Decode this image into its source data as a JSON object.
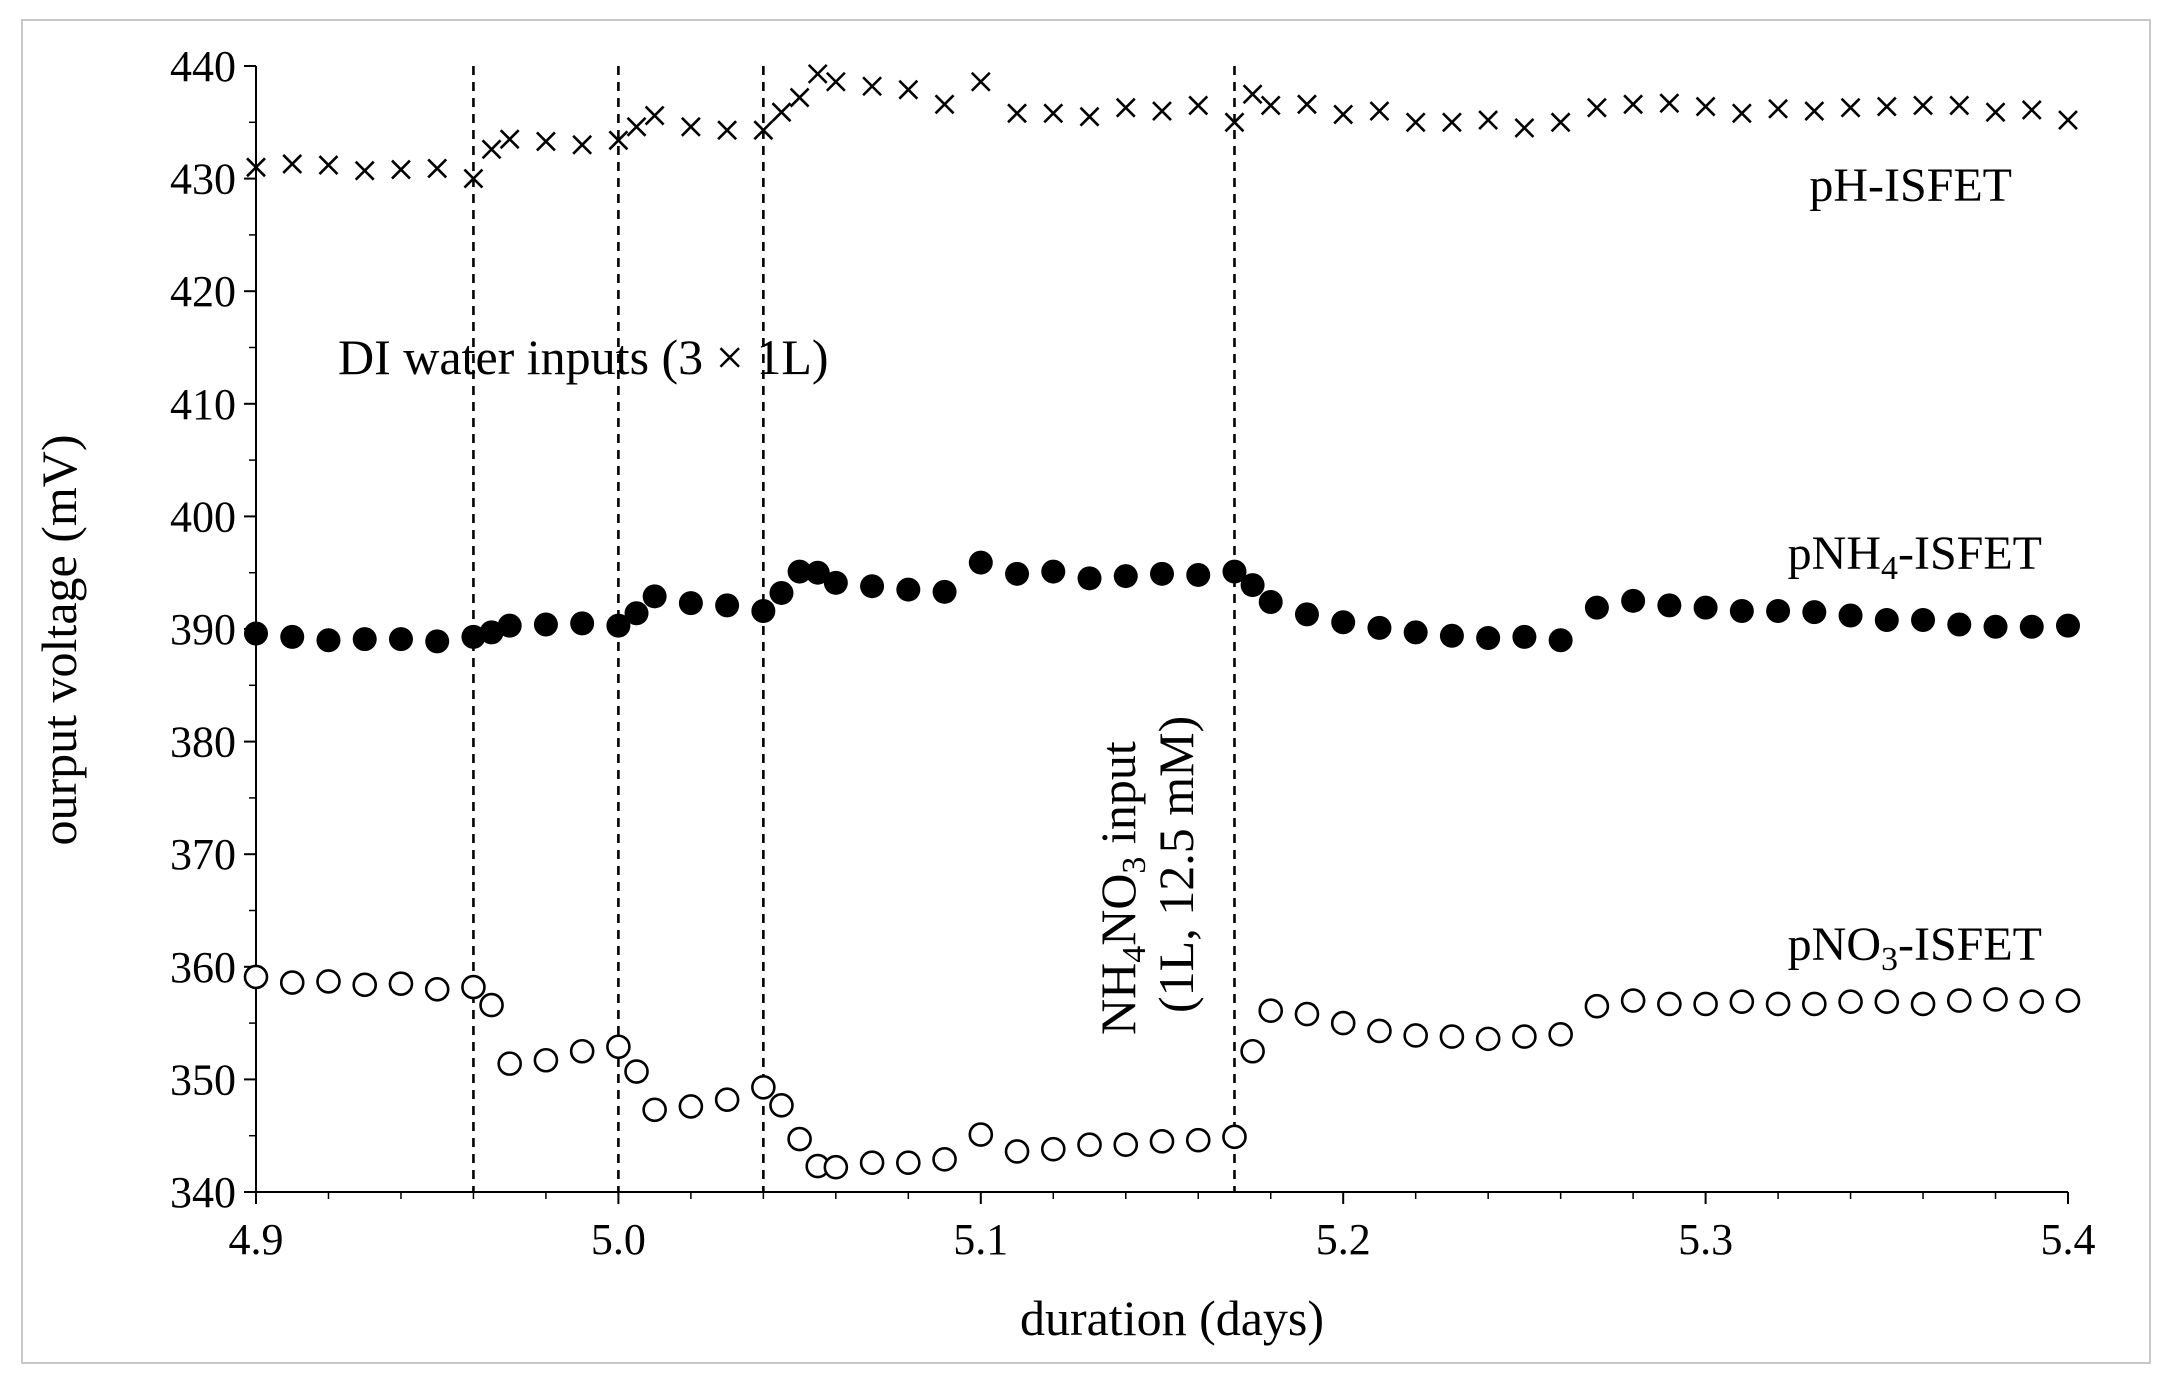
{
  "chart_data": {
    "type": "scatter",
    "title": "",
    "xlabel": "duration (days)",
    "ylabel": "ourput voltage (mV)",
    "xlim": [
      4.9,
      5.4
    ],
    "ylim": [
      340,
      440
    ],
    "x_ticks": [
      "4.9",
      "5.0",
      "5.1",
      "5.2",
      "5.3",
      "5.4"
    ],
    "y_ticks": [
      "340",
      "350",
      "360",
      "370",
      "380",
      "390",
      "400",
      "410",
      "420",
      "430",
      "440"
    ],
    "series": [
      {
        "name": "pH-ISFET",
        "label_base": "pH-ISFET",
        "label_sub": "",
        "label_tail": "",
        "marker": "x",
        "points": [
          [
            4.9,
            431.0
          ],
          [
            4.91,
            431.3
          ],
          [
            4.92,
            431.2
          ],
          [
            4.93,
            430.7
          ],
          [
            4.94,
            430.8
          ],
          [
            4.95,
            430.9
          ],
          [
            4.96,
            430.0
          ],
          [
            4.965,
            432.6
          ],
          [
            4.97,
            433.5
          ],
          [
            4.98,
            433.3
          ],
          [
            4.99,
            433.0
          ],
          [
            5.0,
            433.4
          ],
          [
            5.005,
            434.6
          ],
          [
            5.01,
            435.6
          ],
          [
            5.02,
            434.6
          ],
          [
            5.03,
            434.3
          ],
          [
            5.04,
            434.3
          ],
          [
            5.045,
            435.9
          ],
          [
            5.05,
            437.2
          ],
          [
            5.055,
            439.3
          ],
          [
            5.06,
            438.6
          ],
          [
            5.07,
            438.2
          ],
          [
            5.08,
            437.9
          ],
          [
            5.09,
            436.6
          ],
          [
            5.1,
            438.6
          ],
          [
            5.11,
            435.8
          ],
          [
            5.12,
            435.8
          ],
          [
            5.13,
            435.5
          ],
          [
            5.14,
            436.3
          ],
          [
            5.15,
            436.0
          ],
          [
            5.16,
            436.5
          ],
          [
            5.17,
            435.0
          ],
          [
            5.175,
            437.5
          ],
          [
            5.18,
            436.5
          ],
          [
            5.19,
            436.6
          ],
          [
            5.2,
            435.7
          ],
          [
            5.21,
            436.0
          ],
          [
            5.22,
            435.0
          ],
          [
            5.23,
            435.0
          ],
          [
            5.24,
            435.2
          ],
          [
            5.25,
            434.5
          ],
          [
            5.26,
            435.0
          ],
          [
            5.27,
            436.3
          ],
          [
            5.28,
            436.6
          ],
          [
            5.29,
            436.7
          ],
          [
            5.3,
            436.4
          ],
          [
            5.31,
            435.8
          ],
          [
            5.32,
            436.2
          ],
          [
            5.33,
            436.0
          ],
          [
            5.34,
            436.3
          ],
          [
            5.35,
            436.4
          ],
          [
            5.36,
            436.5
          ],
          [
            5.37,
            436.5
          ],
          [
            5.38,
            435.9
          ],
          [
            5.39,
            436.1
          ],
          [
            5.4,
            435.2
          ]
        ]
      },
      {
        "name": "pNH4-ISFET",
        "label_base": "pNH",
        "label_sub": "4",
        "label_tail": "-ISFET",
        "marker": "filled-circle",
        "points": [
          [
            4.9,
            389.6
          ],
          [
            4.91,
            389.3
          ],
          [
            4.92,
            389.0
          ],
          [
            4.93,
            389.1
          ],
          [
            4.94,
            389.1
          ],
          [
            4.95,
            388.9
          ],
          [
            4.96,
            389.3
          ],
          [
            4.965,
            389.7
          ],
          [
            4.97,
            390.3
          ],
          [
            4.98,
            390.4
          ],
          [
            4.99,
            390.5
          ],
          [
            5.0,
            390.3
          ],
          [
            5.005,
            391.4
          ],
          [
            5.01,
            392.9
          ],
          [
            5.02,
            392.3
          ],
          [
            5.03,
            392.1
          ],
          [
            5.04,
            391.6
          ],
          [
            5.045,
            393.2
          ],
          [
            5.05,
            395.1
          ],
          [
            5.055,
            395.0
          ],
          [
            5.06,
            394.1
          ],
          [
            5.07,
            393.8
          ],
          [
            5.08,
            393.5
          ],
          [
            5.09,
            393.3
          ],
          [
            5.1,
            395.9
          ],
          [
            5.11,
            394.9
          ],
          [
            5.12,
            395.1
          ],
          [
            5.13,
            394.5
          ],
          [
            5.14,
            394.7
          ],
          [
            5.15,
            394.9
          ],
          [
            5.16,
            394.8
          ],
          [
            5.17,
            395.1
          ],
          [
            5.175,
            393.9
          ],
          [
            5.18,
            392.4
          ],
          [
            5.19,
            391.3
          ],
          [
            5.2,
            390.6
          ],
          [
            5.21,
            390.1
          ],
          [
            5.22,
            389.7
          ],
          [
            5.23,
            389.4
          ],
          [
            5.24,
            389.2
          ],
          [
            5.25,
            389.3
          ],
          [
            5.26,
            389.0
          ],
          [
            5.27,
            391.9
          ],
          [
            5.28,
            392.5
          ],
          [
            5.29,
            392.1
          ],
          [
            5.3,
            391.9
          ],
          [
            5.31,
            391.6
          ],
          [
            5.32,
            391.6
          ],
          [
            5.33,
            391.5
          ],
          [
            5.34,
            391.2
          ],
          [
            5.35,
            390.8
          ],
          [
            5.36,
            390.8
          ],
          [
            5.37,
            390.4
          ],
          [
            5.38,
            390.2
          ],
          [
            5.39,
            390.2
          ],
          [
            5.4,
            390.3
          ]
        ]
      },
      {
        "name": "pNO3-ISFET",
        "label_base": "pNO",
        "label_sub": "3",
        "label_tail": "-ISFET",
        "marker": "open-circle",
        "points": [
          [
            4.9,
            359.1
          ],
          [
            4.91,
            358.6
          ],
          [
            4.92,
            358.7
          ],
          [
            4.93,
            358.4
          ],
          [
            4.94,
            358.5
          ],
          [
            4.95,
            358.0
          ],
          [
            4.96,
            358.2
          ],
          [
            4.965,
            356.6
          ],
          [
            4.97,
            351.4
          ],
          [
            4.98,
            351.7
          ],
          [
            4.99,
            352.5
          ],
          [
            5.0,
            352.9
          ],
          [
            5.005,
            350.7
          ],
          [
            5.01,
            347.3
          ],
          [
            5.02,
            347.6
          ],
          [
            5.03,
            348.2
          ],
          [
            5.04,
            349.3
          ],
          [
            5.045,
            347.7
          ],
          [
            5.05,
            344.7
          ],
          [
            5.055,
            342.3
          ],
          [
            5.06,
            342.2
          ],
          [
            5.07,
            342.6
          ],
          [
            5.08,
            342.6
          ],
          [
            5.09,
            342.9
          ],
          [
            5.1,
            345.1
          ],
          [
            5.11,
            343.6
          ],
          [
            5.12,
            343.8
          ],
          [
            5.13,
            344.2
          ],
          [
            5.14,
            344.2
          ],
          [
            5.15,
            344.5
          ],
          [
            5.16,
            344.6
          ],
          [
            5.17,
            344.9
          ],
          [
            5.175,
            352.5
          ],
          [
            5.18,
            356.1
          ],
          [
            5.19,
            355.8
          ],
          [
            5.2,
            355.0
          ],
          [
            5.21,
            354.3
          ],
          [
            5.22,
            353.9
          ],
          [
            5.23,
            353.8
          ],
          [
            5.24,
            353.6
          ],
          [
            5.25,
            353.8
          ],
          [
            5.26,
            354.0
          ],
          [
            5.27,
            356.5
          ],
          [
            5.28,
            357.0
          ],
          [
            5.29,
            356.7
          ],
          [
            5.3,
            356.7
          ],
          [
            5.31,
            356.9
          ],
          [
            5.32,
            356.7
          ],
          [
            5.33,
            356.7
          ],
          [
            5.34,
            356.9
          ],
          [
            5.35,
            356.9
          ],
          [
            5.36,
            356.7
          ],
          [
            5.37,
            357.0
          ],
          [
            5.38,
            357.1
          ],
          [
            5.39,
            356.9
          ],
          [
            5.4,
            357.0
          ]
        ]
      }
    ],
    "vlines": [
      4.96,
      5.0,
      5.04,
      5.17
    ],
    "annotations": {
      "di_water": "DI water inputs (3 × 1L)",
      "nh4no3_line1_a": "NH",
      "nh4no3_line1_sub1": "4",
      "nh4no3_line1_b": "NO",
      "nh4no3_line1_sub2": "3",
      "nh4no3_line1_c": " input",
      "nh4no3_line2": "(1L, 12.5 mM)"
    }
  }
}
